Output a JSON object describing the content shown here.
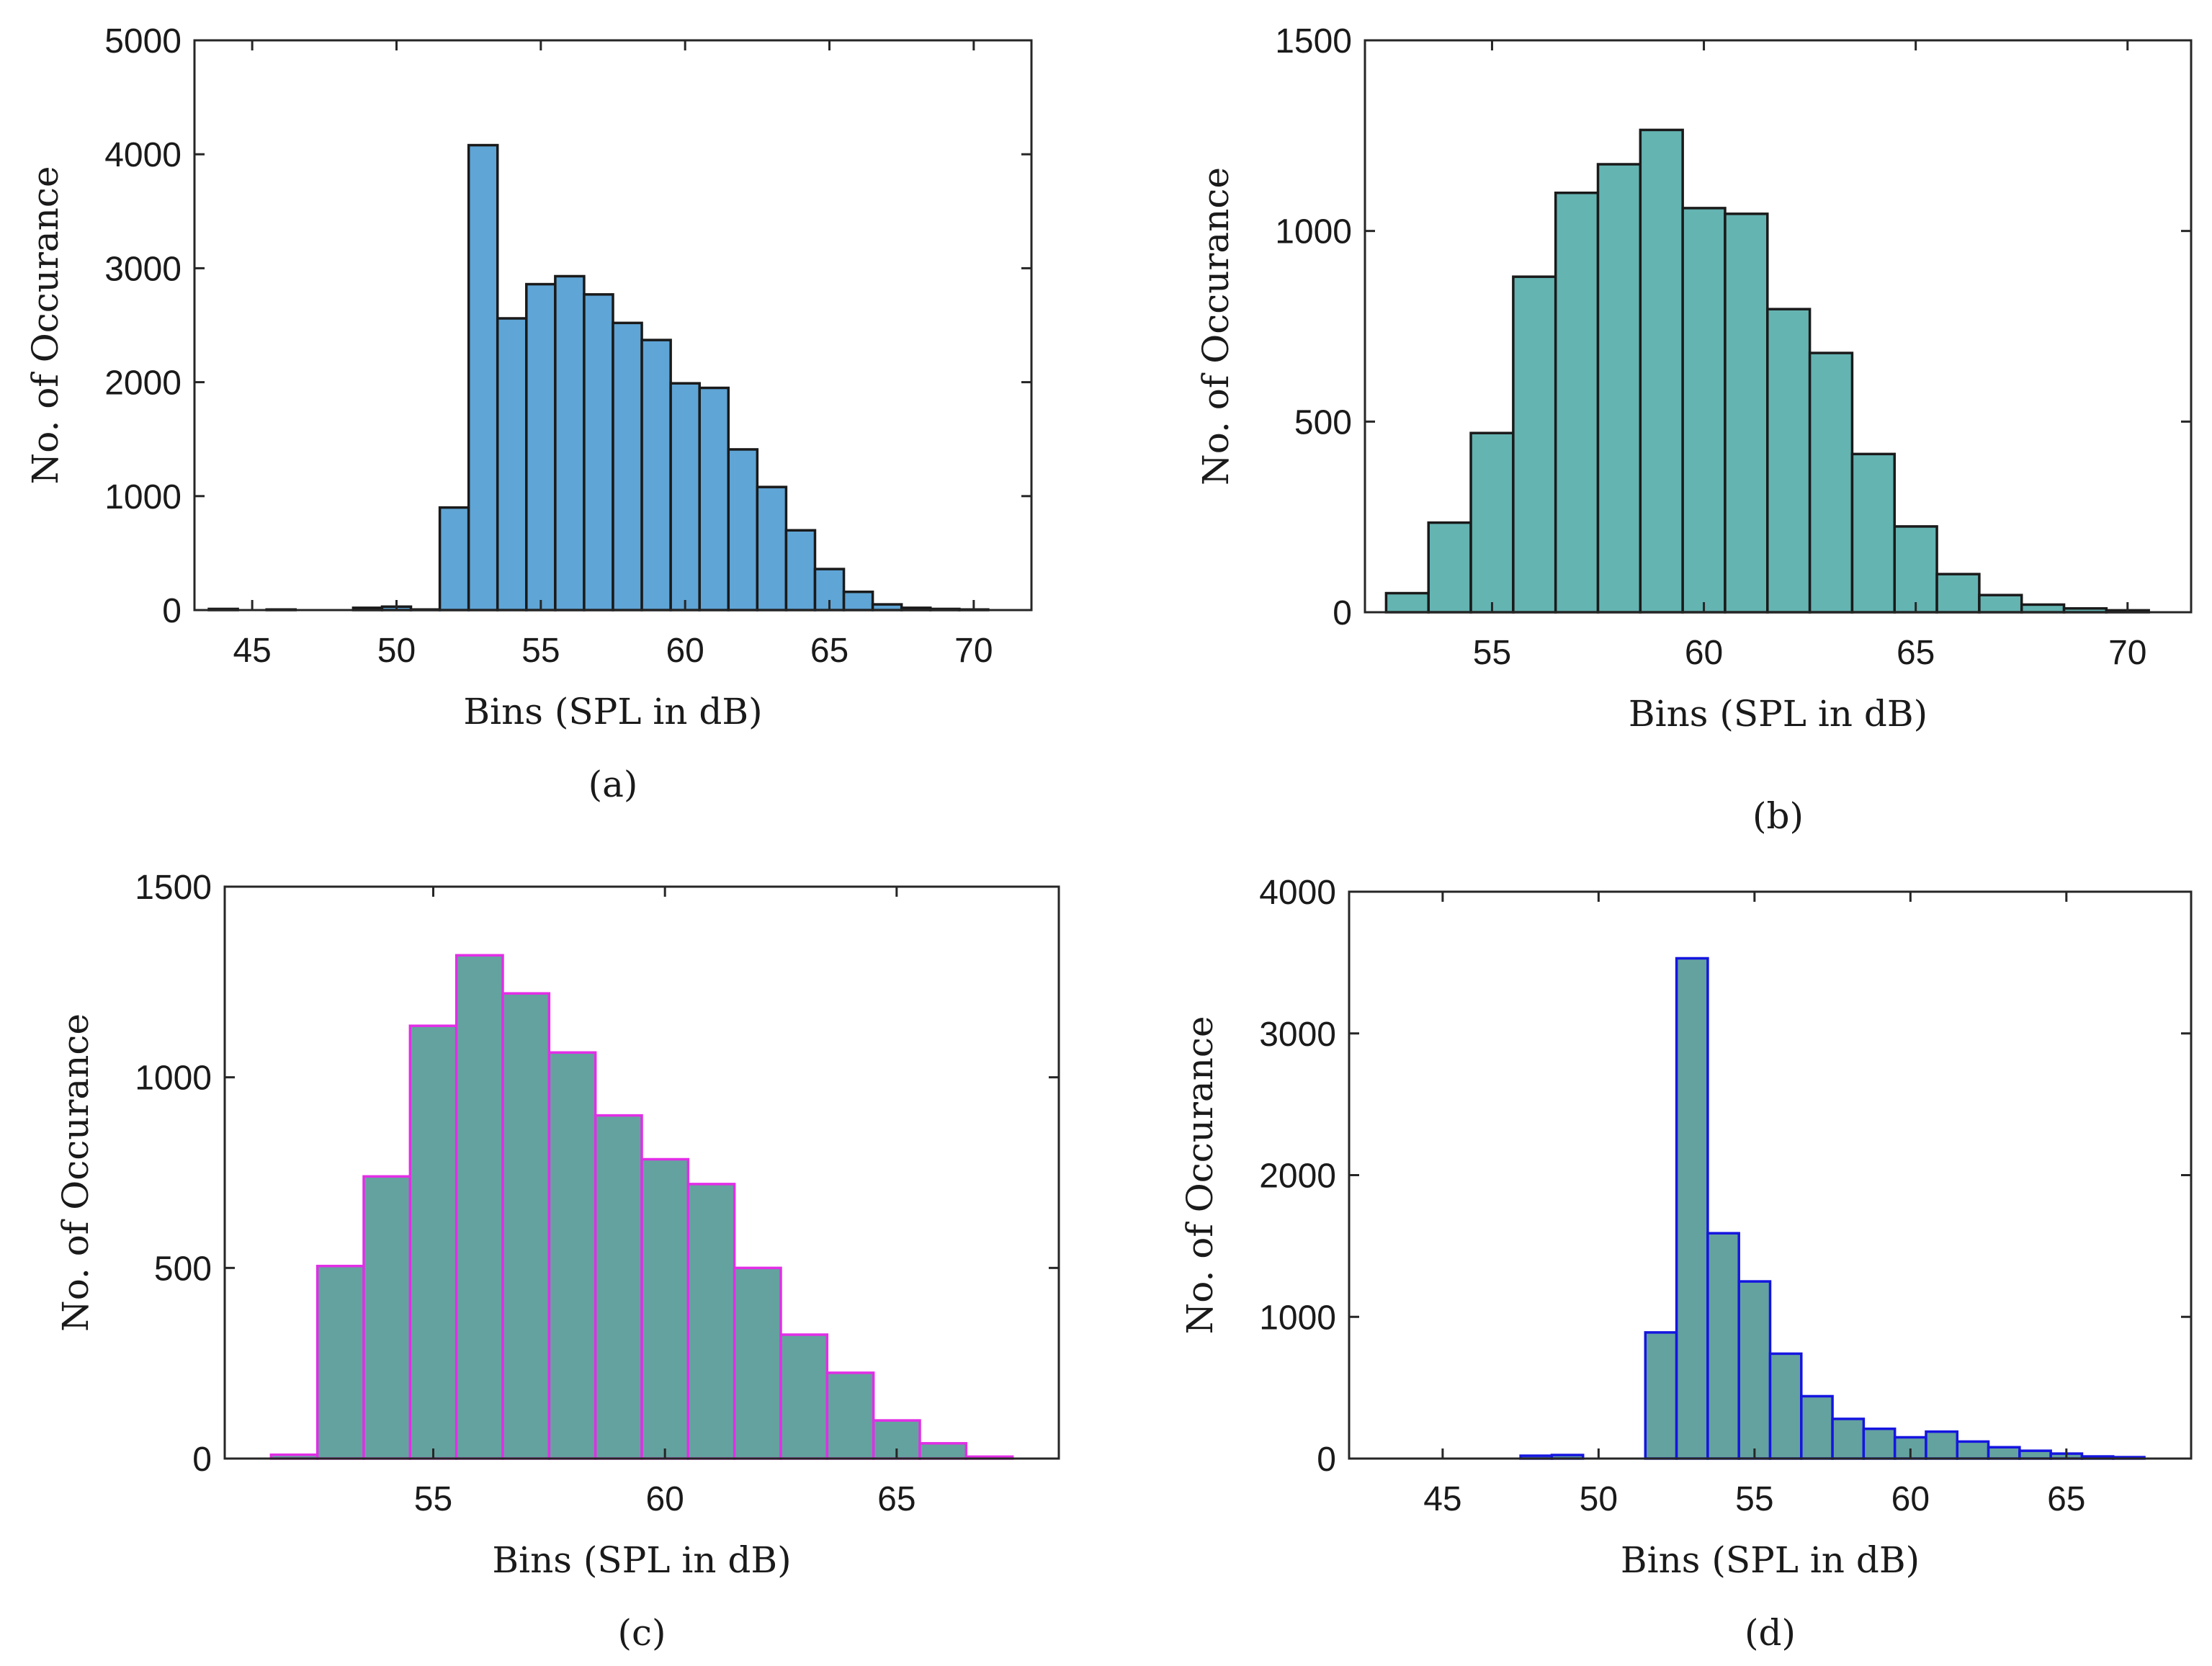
{
  "chart_data": [
    {
      "type": "bar",
      "panel_label": "(a)",
      "xlabel": "Bins (SPL in dB)",
      "ylabel": "No. of Occurance",
      "xlim": [
        43,
        72
      ],
      "ylim": [
        0,
        5000
      ],
      "xticks": [
        "45",
        "50",
        "55",
        "60",
        "65",
        "70"
      ],
      "yticks": [
        "0",
        "1000",
        "2000",
        "3000",
        "4000",
        "5000"
      ],
      "bin_start": 43.5,
      "bin_width": 1,
      "values": [
        10,
        0,
        5,
        0,
        0,
        20,
        30,
        5,
        900,
        4080,
        2560,
        2860,
        2930,
        2770,
        2520,
        2370,
        1990,
        1950,
        1410,
        1080,
        700,
        360,
        160,
        50,
        20,
        10,
        5
      ],
      "fill_color": "#5fa5d6",
      "edge_color": "#1a1a1a",
      "grid": false
    },
    {
      "type": "bar",
      "panel_label": "(b)",
      "xlabel": "Bins (SPL in dB)",
      "ylabel": "No. of Occurance",
      "xlim": [
        52,
        71.5
      ],
      "ylim": [
        0,
        1500
      ],
      "xticks": [
        "55",
        "60",
        "65",
        "70"
      ],
      "yticks": [
        "0",
        "500",
        "1000",
        "1500"
      ],
      "bin_start": 52.5,
      "bin_width": 1,
      "values": [
        50,
        235,
        470,
        880,
        1100,
        1175,
        1265,
        1060,
        1045,
        795,
        680,
        415,
        225,
        100,
        45,
        20,
        10,
        5
      ],
      "fill_color": "#64b4b2",
      "edge_color": "#1a1a1a",
      "grid": false
    },
    {
      "type": "bar",
      "panel_label": "(c)",
      "xlabel": "Bins (SPL in dB)",
      "ylabel": "No. of Occurance",
      "xlim": [
        50.5,
        68.5
      ],
      "ylim": [
        0,
        1500
      ],
      "xticks": [
        "55",
        "60",
        "65"
      ],
      "yticks": [
        "0",
        "500",
        "1000",
        "1500"
      ],
      "bin_start": 51.5,
      "bin_width": 1,
      "values": [
        10,
        505,
        740,
        1135,
        1320,
        1220,
        1065,
        900,
        785,
        720,
        500,
        325,
        225,
        100,
        40,
        5
      ],
      "fill_color": "#64a29f",
      "edge_color": "#e22ee6",
      "grid": false
    },
    {
      "type": "bar",
      "panel_label": "(d)",
      "xlabel": "Bins (SPL in dB)",
      "ylabel": "No. of Occurance",
      "xlim": [
        42,
        69
      ],
      "ylim": [
        0,
        4000
      ],
      "xticks": [
        "45",
        "50",
        "55",
        "60",
        "65"
      ],
      "yticks": [
        "0",
        "1000",
        "2000",
        "3000",
        "4000"
      ],
      "bin_start": 43.5,
      "bin_width": 1,
      "values": [
        0,
        0,
        0,
        0,
        20,
        25,
        0,
        0,
        890,
        3530,
        1590,
        1250,
        740,
        440,
        280,
        210,
        150,
        190,
        120,
        80,
        55,
        35,
        15,
        10
      ],
      "fill_color": "#64a29f",
      "edge_color": "#1515e0",
      "grid": false
    }
  ]
}
